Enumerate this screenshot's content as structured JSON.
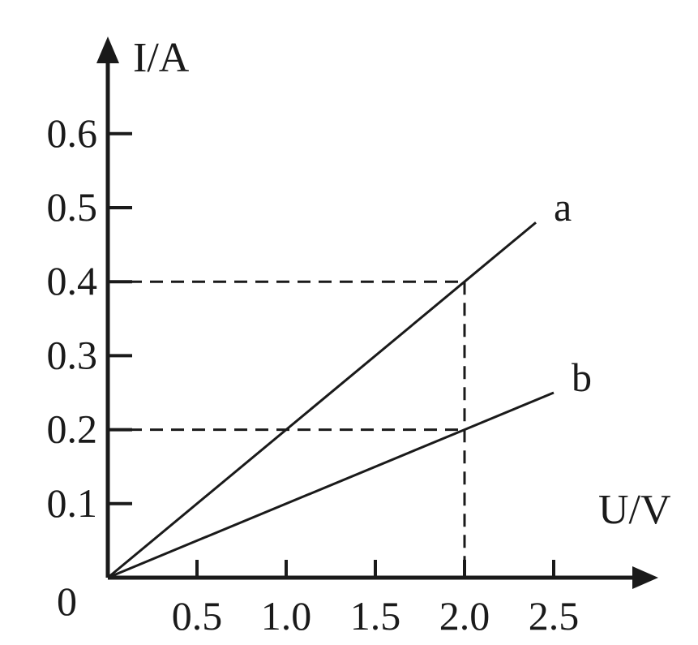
{
  "chart_data": {
    "type": "line",
    "title": "",
    "xlabel": "U/V",
    "ylabel": "I/A",
    "origin_label": "0",
    "xlim": [
      0,
      3.0
    ],
    "ylim": [
      0,
      0.7
    ],
    "x_ticks": [
      0.5,
      1.0,
      1.5,
      2.0,
      2.5
    ],
    "x_tick_labels": [
      "0.5",
      "1.0",
      "1.5",
      "2.0",
      "2.5"
    ],
    "y_ticks": [
      0.1,
      0.2,
      0.3,
      0.4,
      0.5,
      0.6
    ],
    "y_tick_labels": [
      "0.1",
      "0.2",
      "0.3",
      "0.4",
      "0.5",
      "0.6"
    ],
    "grid": false,
    "legend": "none",
    "series": [
      {
        "name": "a",
        "x": [
          0,
          2.0,
          2.4
        ],
        "y": [
          0,
          0.4,
          0.48
        ]
      },
      {
        "name": "b",
        "x": [
          0,
          2.0,
          2.5
        ],
        "y": [
          0,
          0.2,
          0.25
        ]
      }
    ],
    "reference_lines": [
      {
        "from": [
          0,
          0.4
        ],
        "to": [
          2.0,
          0.4
        ]
      },
      {
        "from": [
          0,
          0.2
        ],
        "to": [
          2.0,
          0.2
        ]
      },
      {
        "from": [
          2.0,
          0.4
        ],
        "to": [
          2.0,
          0
        ]
      }
    ]
  }
}
